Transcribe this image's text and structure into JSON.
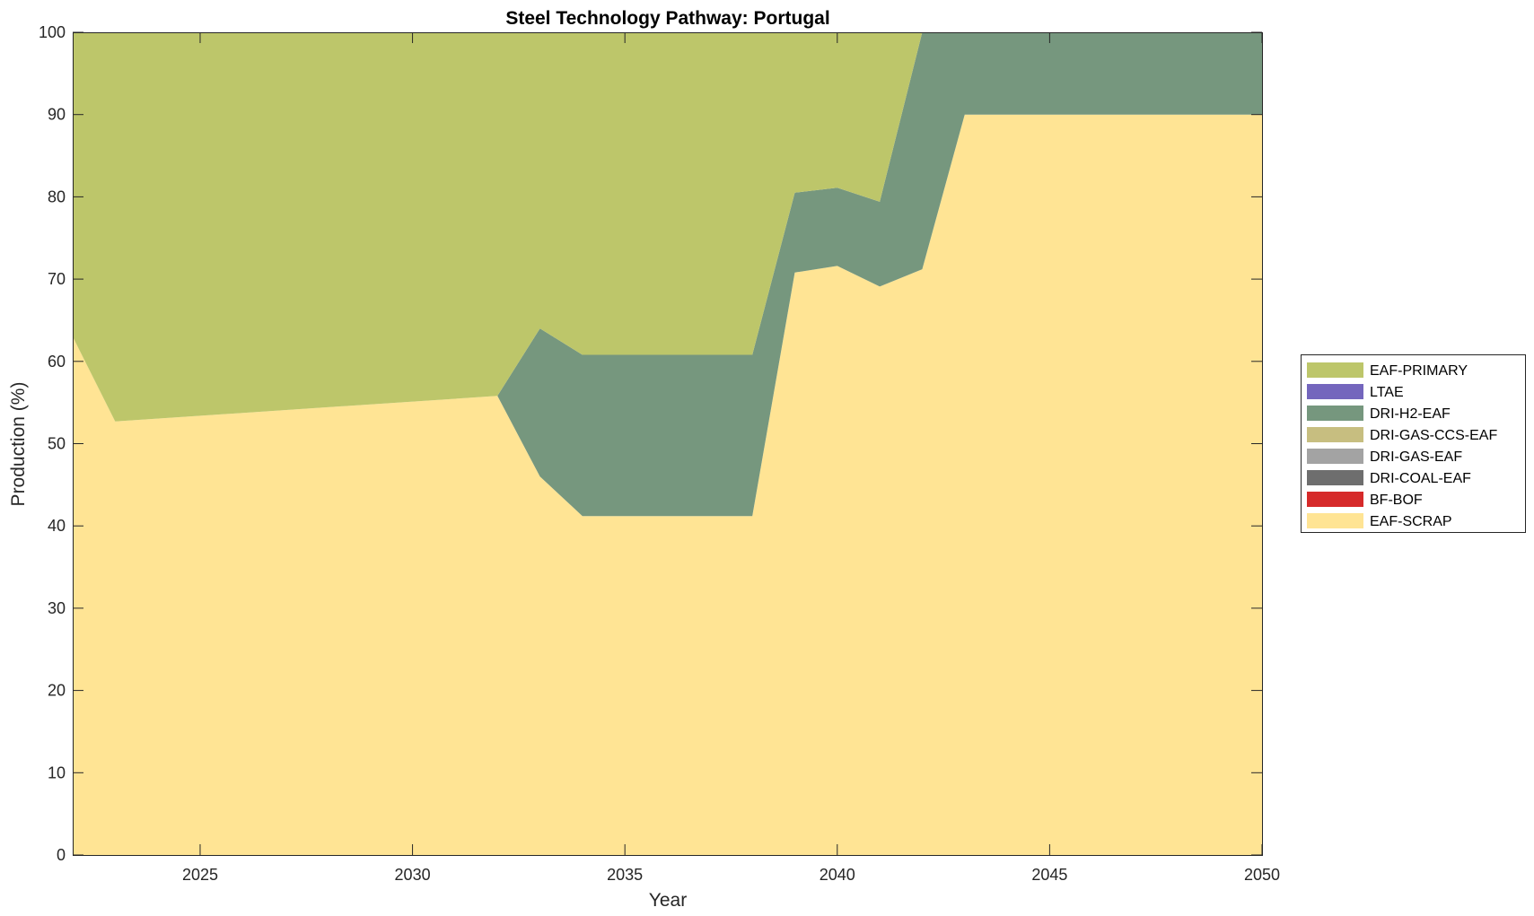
{
  "chart_data": {
    "type": "area",
    "stacked": true,
    "title": "Steel Technology Pathway: Portugal",
    "xlabel": "Year",
    "ylabel": "Production (%)",
    "xlim": [
      2022,
      2050
    ],
    "ylim": [
      0,
      100
    ],
    "xticks": [
      2025,
      2030,
      2035,
      2040,
      2045,
      2050
    ],
    "yticks": [
      0,
      10,
      20,
      30,
      40,
      50,
      60,
      70,
      80,
      90,
      100
    ],
    "grid": false,
    "legend_position": "right",
    "x": [
      2022,
      2023,
      2032,
      2033,
      2034,
      2038,
      2039,
      2040,
      2041,
      2042,
      2043,
      2050
    ],
    "series": [
      {
        "name": "EAF-SCRAP",
        "color": "#FFE494",
        "values": [
          63,
          52.7,
          55.8,
          46,
          41.2,
          41.2,
          70.8,
          71.6,
          69.1,
          71.2,
          90,
          90
        ]
      },
      {
        "name": "BF-BOF",
        "color": "#D62A2A",
        "values": [
          0,
          0,
          0,
          0,
          0,
          0,
          0,
          0,
          0,
          0,
          0,
          0
        ]
      },
      {
        "name": "DRI-COAL-EAF",
        "color": "#6E6E6E",
        "values": [
          0,
          0,
          0,
          0,
          0,
          0,
          0,
          0,
          0,
          0,
          0,
          0
        ]
      },
      {
        "name": "DRI-GAS-EAF",
        "color": "#A3A3A3",
        "values": [
          0,
          0,
          0,
          0,
          0,
          0,
          0,
          0,
          0,
          0,
          0,
          0
        ]
      },
      {
        "name": "DRI-GAS-CCS-EAF",
        "color": "#C7BE80",
        "values": [
          0,
          0,
          0,
          0,
          0,
          0,
          0,
          0,
          0,
          0,
          0,
          0
        ]
      },
      {
        "name": "DRI-H2-EAF",
        "color": "#76977E",
        "values": [
          0,
          0,
          0,
          18,
          19.6,
          19.6,
          9.7,
          9.5,
          10.3,
          28.8,
          10,
          10
        ]
      },
      {
        "name": "LTAE",
        "color": "#7466BD",
        "values": [
          0,
          0,
          0,
          0,
          0,
          0,
          0,
          0,
          0,
          0,
          0,
          0
        ]
      },
      {
        "name": "EAF-PRIMARY",
        "color": "#BDC66A",
        "values": [
          37,
          47.3,
          44.2,
          36,
          39.2,
          39.2,
          19.5,
          18.9,
          20.6,
          0,
          0,
          0
        ]
      }
    ],
    "legend_order": [
      "EAF-PRIMARY",
      "LTAE",
      "DRI-H2-EAF",
      "DRI-GAS-CCS-EAF",
      "DRI-GAS-EAF",
      "DRI-COAL-EAF",
      "BF-BOF",
      "EAF-SCRAP"
    ]
  }
}
